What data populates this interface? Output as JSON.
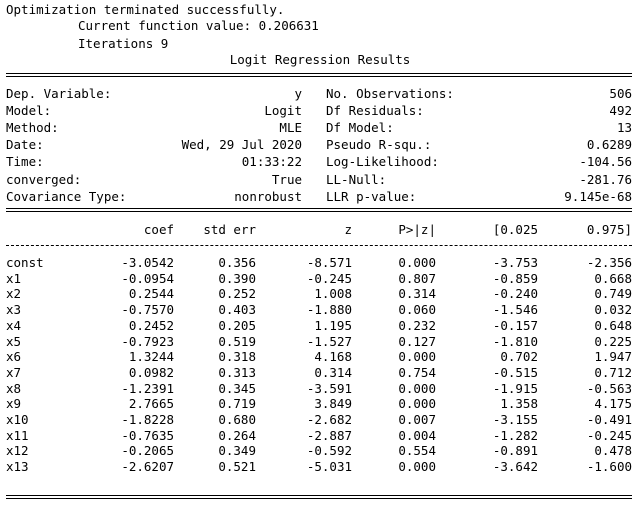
{
  "header": {
    "line1": "Optimization terminated successfully.",
    "line2": "Current function value: 0.206631",
    "line3": "Iterations 9",
    "title": "Logit Regression Results"
  },
  "summary_left": [
    {
      "label": "Dep. Variable:",
      "value": "y"
    },
    {
      "label": "Model:",
      "value": "Logit"
    },
    {
      "label": "Method:",
      "value": "MLE"
    },
    {
      "label": "Date:",
      "value": "Wed, 29 Jul 2020"
    },
    {
      "label": "Time:",
      "value": "01:33:22"
    },
    {
      "label": "converged:",
      "value": "True"
    },
    {
      "label": "Covariance Type:",
      "value": "nonrobust"
    }
  ],
  "summary_right": [
    {
      "label": "No. Observations:",
      "value": "506"
    },
    {
      "label": "Df Residuals:",
      "value": "492"
    },
    {
      "label": "Df Model:",
      "value": "13"
    },
    {
      "label": "Pseudo R-squ.:",
      "value": "0.6289"
    },
    {
      "label": "Log-Likelihood:",
      "value": "-104.56"
    },
    {
      "label": "LL-Null:",
      "value": "-281.76"
    },
    {
      "label": "LLR p-value:",
      "value": "9.145e-68"
    }
  ],
  "coef_table": {
    "columns": [
      "coef",
      "std err",
      "z",
      "P>|z|",
      "[0.025",
      "0.975]"
    ],
    "rows": [
      {
        "name": "const",
        "coef": "-3.0542",
        "stderr": "0.356",
        "z": "-8.571",
        "p": "0.000",
        "lo": "-3.753",
        "hi": "-2.356"
      },
      {
        "name": "x1",
        "coef": "-0.0954",
        "stderr": "0.390",
        "z": "-0.245",
        "p": "0.807",
        "lo": "-0.859",
        "hi": "0.668"
      },
      {
        "name": "x2",
        "coef": "0.2544",
        "stderr": "0.252",
        "z": "1.008",
        "p": "0.314",
        "lo": "-0.240",
        "hi": "0.749"
      },
      {
        "name": "x3",
        "coef": "-0.7570",
        "stderr": "0.403",
        "z": "-1.880",
        "p": "0.060",
        "lo": "-1.546",
        "hi": "0.032"
      },
      {
        "name": "x4",
        "coef": "0.2452",
        "stderr": "0.205",
        "z": "1.195",
        "p": "0.232",
        "lo": "-0.157",
        "hi": "0.648"
      },
      {
        "name": "x5",
        "coef": "-0.7923",
        "stderr": "0.519",
        "z": "-1.527",
        "p": "0.127",
        "lo": "-1.810",
        "hi": "0.225"
      },
      {
        "name": "x6",
        "coef": "1.3244",
        "stderr": "0.318",
        "z": "4.168",
        "p": "0.000",
        "lo": "0.702",
        "hi": "1.947"
      },
      {
        "name": "x7",
        "coef": "0.0982",
        "stderr": "0.313",
        "z": "0.314",
        "p": "0.754",
        "lo": "-0.515",
        "hi": "0.712"
      },
      {
        "name": "x8",
        "coef": "-1.2391",
        "stderr": "0.345",
        "z": "-3.591",
        "p": "0.000",
        "lo": "-1.915",
        "hi": "-0.563"
      },
      {
        "name": "x9",
        "coef": "2.7665",
        "stderr": "0.719",
        "z": "3.849",
        "p": "0.000",
        "lo": "1.358",
        "hi": "4.175"
      },
      {
        "name": "x10",
        "coef": "-1.8228",
        "stderr": "0.680",
        "z": "-2.682",
        "p": "0.007",
        "lo": "-3.155",
        "hi": "-0.491"
      },
      {
        "name": "x11",
        "coef": "-0.7635",
        "stderr": "0.264",
        "z": "-2.887",
        "p": "0.004",
        "lo": "-1.282",
        "hi": "-0.245"
      },
      {
        "name": "x12",
        "coef": "-0.2065",
        "stderr": "0.349",
        "z": "-0.592",
        "p": "0.554",
        "lo": "-0.891",
        "hi": "0.478"
      },
      {
        "name": "x13",
        "coef": "-2.6207",
        "stderr": "0.521",
        "z": "-5.031",
        "p": "0.000",
        "lo": "-3.642",
        "hi": "-1.600"
      }
    ]
  }
}
